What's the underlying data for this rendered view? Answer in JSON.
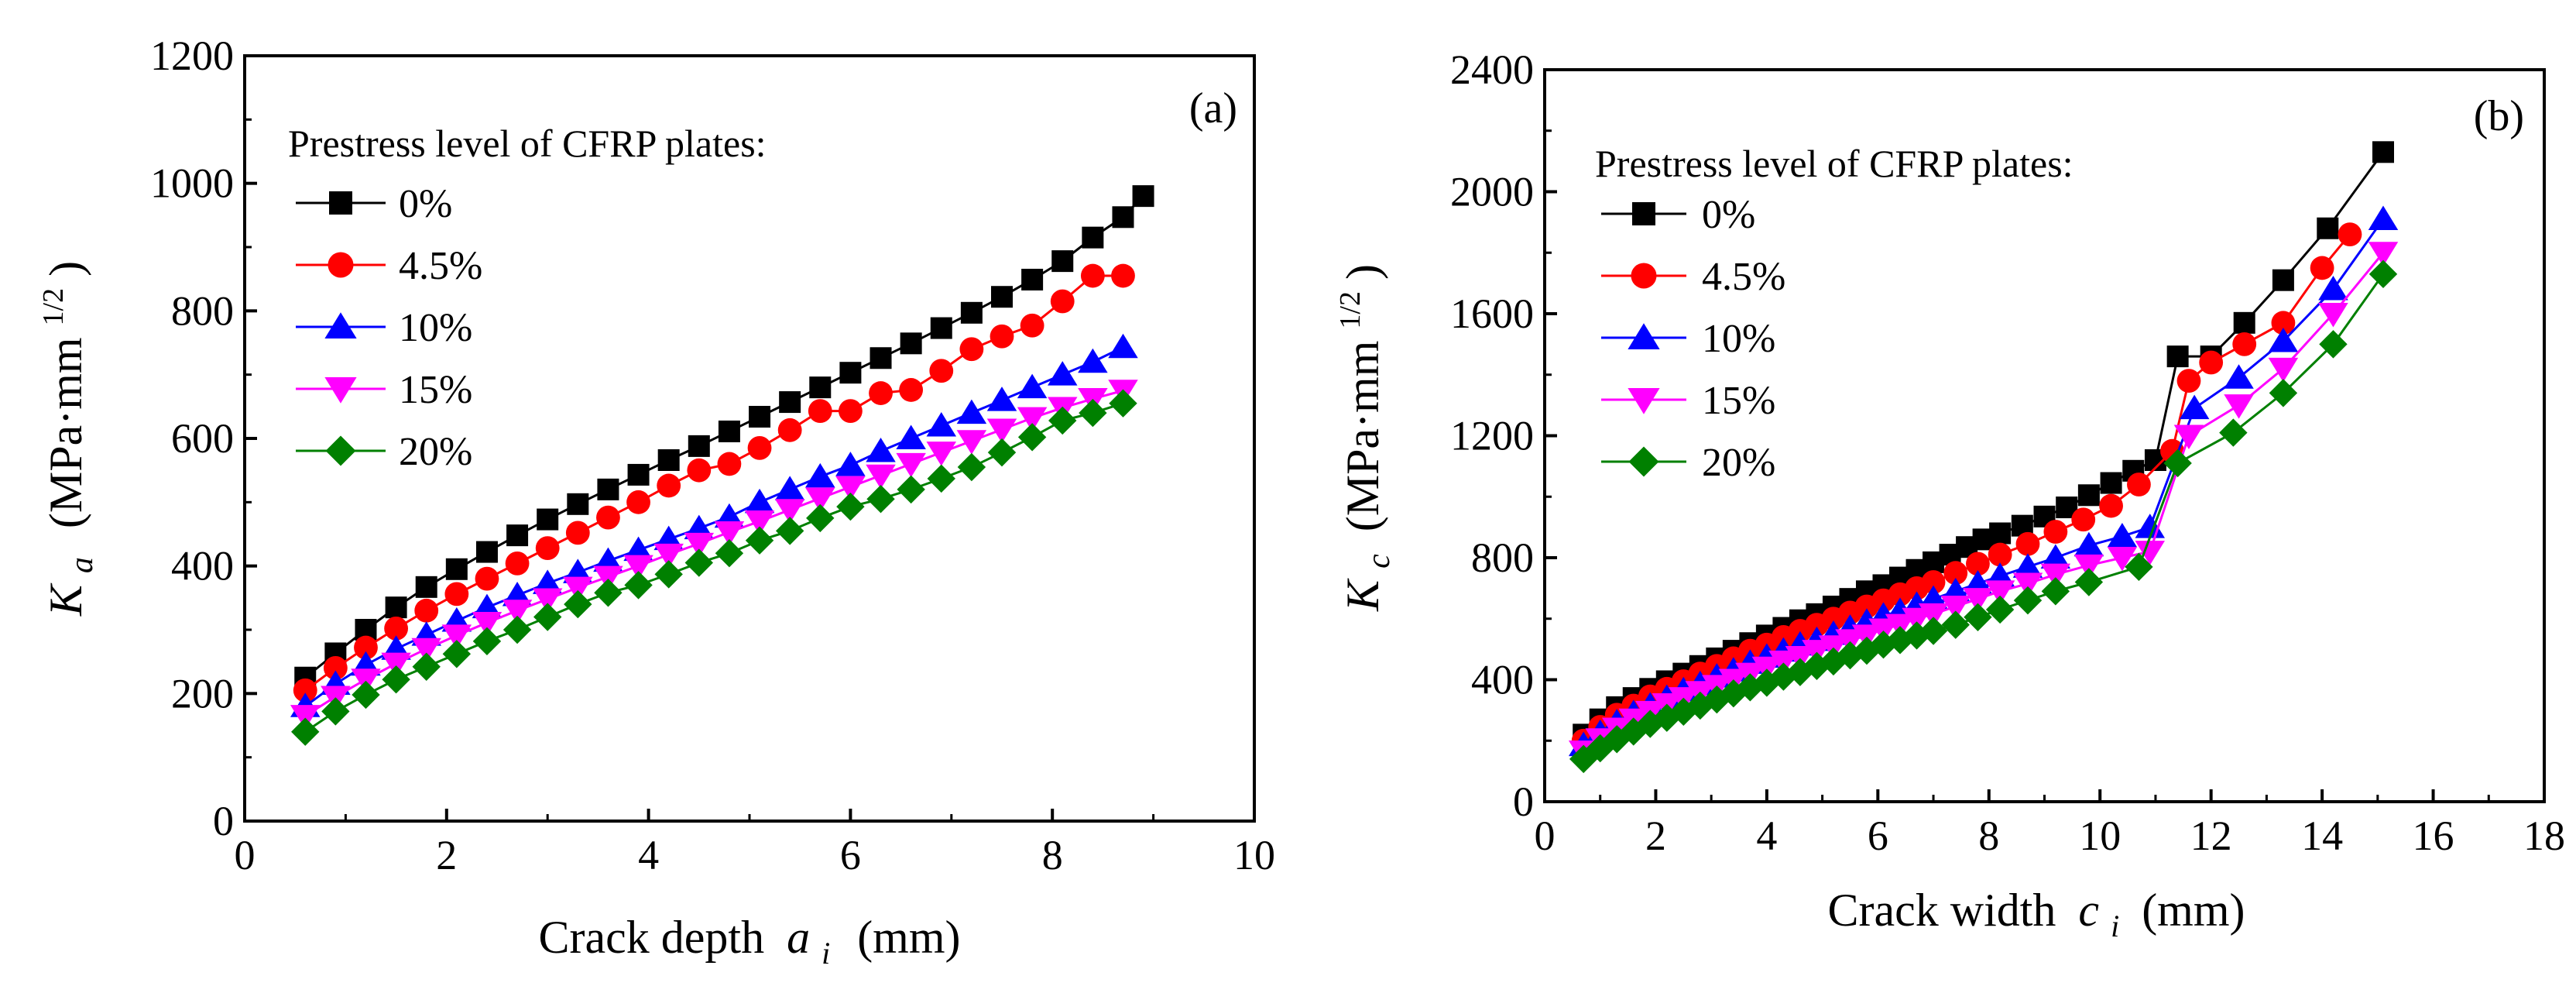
{
  "chart_data": [
    {
      "type": "line",
      "panel_label": "(a)",
      "xlabel": "Crack depth",
      "xlabel_var": "a",
      "xlabel_sub": "i",
      "xlabel_unit": "(mm)",
      "ylabel_var": "K",
      "ylabel_sub": "a",
      "ylabel_unit_pre": "(MPa·mm",
      "ylabel_unit_sup": "1/2",
      "ylabel_unit_post": ")",
      "xlim": [
        0,
        10
      ],
      "ylim": [
        0,
        1200
      ],
      "xticks": [
        0,
        2,
        4,
        6,
        8,
        10
      ],
      "yticks": [
        0,
        200,
        400,
        600,
        800,
        1000,
        1200
      ],
      "grid": false,
      "legend_title": "Prestress level of CFRP plates:",
      "legend_position": "top-left",
      "x": [
        0.6,
        0.9,
        1.2,
        1.5,
        1.8,
        2.1,
        2.4,
        2.7,
        3.0,
        3.3,
        3.6,
        3.9,
        4.2,
        4.5,
        4.8,
        5.1,
        5.4,
        5.7,
        6.0,
        6.3,
        6.6,
        6.9,
        7.2,
        7.5,
        7.8,
        8.1,
        8.4,
        8.7
      ],
      "series": [
        {
          "name": "0%",
          "color": "#000000",
          "marker": "square",
          "values": [
            225,
            263,
            300,
            335,
            367,
            395,
            422,
            448,
            473,
            497,
            520,
            543,
            566,
            588,
            611,
            634,
            657,
            680,
            703,
            726,
            749,
            773,
            797,
            822,
            849,
            878,
            915,
            947
          ],
          "extra_x": [
            8.9
          ],
          "extra_values": [
            980
          ]
        },
        {
          "name": "4.5%",
          "color": "#ff0000",
          "marker": "circle",
          "values": [
            205,
            240,
            272,
            302,
            330,
            356,
            380,
            404,
            428,
            452,
            476,
            500,
            526,
            550,
            560,
            585,
            613,
            643,
            643,
            671,
            676,
            706,
            740,
            760,
            777,
            815,
            855,
            855
          ]
        },
        {
          "name": "10%",
          "color": "#0000ff",
          "marker": "triangle-up",
          "values": [
            180,
            215,
            245,
            270,
            292,
            314,
            335,
            354,
            373,
            390,
            408,
            425,
            442,
            459,
            477,
            500,
            520,
            540,
            558,
            580,
            600,
            620,
            640,
            660,
            680,
            700,
            720,
            743
          ]
        },
        {
          "name": "15%",
          "color": "#ff00ff",
          "marker": "triangle-down",
          "values": [
            165,
            195,
            222,
            247,
            270,
            291,
            311,
            330,
            348,
            366,
            383,
            400,
            418,
            435,
            453,
            470,
            488,
            506,
            524,
            542,
            560,
            578,
            596,
            614,
            632,
            648,
            662,
            675
          ]
        },
        {
          "name": "20%",
          "color": "#008000",
          "marker": "diamond",
          "values": [
            140,
            172,
            198,
            222,
            242,
            262,
            282,
            300,
            320,
            340,
            358,
            370,
            387,
            405,
            420,
            440,
            455,
            475,
            493,
            505,
            520,
            537,
            555,
            578,
            602,
            628,
            640,
            655
          ]
        }
      ]
    },
    {
      "type": "line",
      "panel_label": "(b)",
      "xlabel": "Crack width",
      "xlabel_var": "c",
      "xlabel_sub": "i",
      "xlabel_unit": "(mm)",
      "ylabel_var": "K",
      "ylabel_sub": "c",
      "ylabel_unit_pre": "(MPa·mm",
      "ylabel_unit_sup": "1/2",
      "ylabel_unit_post": ")",
      "xlim": [
        0,
        18
      ],
      "ylim": [
        0,
        2400
      ],
      "xticks": [
        0,
        2,
        4,
        6,
        8,
        10,
        12,
        14,
        16,
        18
      ],
      "yticks": [
        0,
        400,
        800,
        1200,
        1600,
        2000,
        2400
      ],
      "grid": false,
      "legend_title": "Prestress level of CFRP plates:",
      "legend_position": "top-left",
      "series": [
        {
          "name": "0%",
          "color": "#000000",
          "marker": "square",
          "x": [
            0.7,
            1.0,
            1.3,
            1.6,
            1.9,
            2.2,
            2.5,
            2.8,
            3.1,
            3.4,
            3.7,
            4.0,
            4.3,
            4.6,
            4.9,
            5.2,
            5.5,
            5.8,
            6.1,
            6.4,
            6.7,
            7.0,
            7.3,
            7.6,
            7.9,
            8.2,
            8.6,
            9.0,
            9.4,
            9.8,
            10.2,
            10.6,
            11.0,
            11.4,
            12.0,
            12.6,
            13.3,
            14.1,
            15.1
          ],
          "values": [
            220,
            270,
            310,
            340,
            370,
            395,
            420,
            445,
            470,
            495,
            520,
            545,
            570,
            595,
            615,
            640,
            665,
            690,
            710,
            735,
            760,
            785,
            810,
            835,
            860,
            880,
            905,
            935,
            965,
            1005,
            1045,
            1085,
            1120,
            1460,
            1460,
            1570,
            1710,
            1880,
            2130
          ]
        },
        {
          "name": "4.5%",
          "color": "#ff0000",
          "marker": "circle",
          "x": [
            0.7,
            1.0,
            1.3,
            1.6,
            1.9,
            2.2,
            2.5,
            2.8,
            3.1,
            3.4,
            3.7,
            4.0,
            4.3,
            4.6,
            4.9,
            5.2,
            5.5,
            5.8,
            6.1,
            6.4,
            6.7,
            7.0,
            7.4,
            7.8,
            8.2,
            8.7,
            9.2,
            9.7,
            10.2,
            10.7,
            11.3,
            11.6,
            12.0,
            12.6,
            13.3,
            14.0,
            14.5
          ],
          "values": [
            200,
            245,
            285,
            315,
            345,
            370,
            395,
            420,
            445,
            470,
            495,
            515,
            540,
            560,
            580,
            600,
            620,
            640,
            660,
            680,
            700,
            720,
            750,
            780,
            810,
            845,
            885,
            925,
            970,
            1040,
            1150,
            1380,
            1440,
            1500,
            1570,
            1750,
            1860
          ]
        },
        {
          "name": "10%",
          "color": "#0000ff",
          "marker": "triangle-up",
          "x": [
            0.7,
            1.0,
            1.3,
            1.6,
            1.9,
            2.2,
            2.5,
            2.8,
            3.1,
            3.4,
            3.7,
            4.0,
            4.3,
            4.6,
            4.9,
            5.2,
            5.5,
            5.8,
            6.1,
            6.4,
            6.7,
            7.0,
            7.4,
            7.8,
            8.2,
            8.7,
            9.2,
            9.8,
            10.4,
            10.9,
            11.7,
            12.5,
            13.3,
            14.2,
            15.1
          ],
          "values": [
            185,
            225,
            260,
            290,
            315,
            340,
            365,
            385,
            410,
            430,
            455,
            475,
            495,
            515,
            530,
            550,
            570,
            590,
            610,
            625,
            645,
            665,
            690,
            715,
            740,
            770,
            800,
            840,
            870,
            900,
            1290,
            1390,
            1510,
            1680,
            1910
          ]
        },
        {
          "name": "15%",
          "color": "#ff00ff",
          "marker": "triangle-down",
          "x": [
            0.7,
            1.0,
            1.3,
            1.6,
            1.9,
            2.2,
            2.5,
            2.8,
            3.1,
            3.4,
            3.7,
            4.0,
            4.3,
            4.6,
            4.9,
            5.2,
            5.5,
            5.8,
            6.1,
            6.4,
            6.7,
            7.0,
            7.4,
            7.8,
            8.2,
            8.7,
            9.2,
            9.8,
            10.4,
            10.9,
            11.6,
            12.5,
            13.3,
            14.2,
            15.1
          ],
          "values": [
            165,
            205,
            240,
            270,
            295,
            320,
            340,
            360,
            380,
            400,
            420,
            440,
            460,
            475,
            495,
            510,
            530,
            545,
            565,
            580,
            600,
            615,
            640,
            665,
            690,
            715,
            745,
            775,
            800,
            820,
            1200,
            1300,
            1420,
            1600,
            1800
          ]
        },
        {
          "name": "20%",
          "color": "#008000",
          "marker": "diamond",
          "x": [
            0.7,
            1.0,
            1.3,
            1.6,
            1.9,
            2.2,
            2.5,
            2.8,
            3.1,
            3.4,
            3.7,
            4.0,
            4.3,
            4.6,
            4.9,
            5.2,
            5.5,
            5.8,
            6.1,
            6.4,
            6.7,
            7.0,
            7.4,
            7.8,
            8.2,
            8.7,
            9.2,
            9.8,
            10.7,
            11.4,
            12.4,
            13.3,
            14.2,
            15.1
          ],
          "values": [
            140,
            175,
            205,
            230,
            255,
            275,
            295,
            315,
            335,
            355,
            375,
            390,
            410,
            425,
            445,
            460,
            480,
            495,
            515,
            530,
            545,
            560,
            580,
            605,
            630,
            660,
            690,
            720,
            770,
            1110,
            1210,
            1340,
            1500,
            1730
          ]
        }
      ]
    }
  ]
}
